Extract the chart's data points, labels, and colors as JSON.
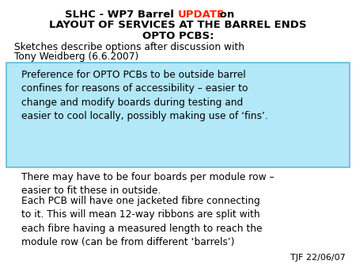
{
  "title_part1": "SLHC - WP7 Barrel ",
  "title_update": "UPDATE",
  "title_part2": " on",
  "title_line2": "LAYOUT OF SERVICES AT THE BARREL ENDS",
  "title_line3": "OPTO PCBS:",
  "subtitle_line1": "Sketches describe options after discussion with",
  "subtitle_line2": "Tony Weidberg (6.6.2007)",
  "highlight_text": "Preference for OPTO PCBs to be outside barrel\nconfines for reasons of accessibility – easier to\nchange and modify boards during testing and\neasier to cool locally, possibly making use of ‘fins’.",
  "body_text1": "There may have to be four boards per module row –\neasier to fit these in outside.",
  "body_text2": "Each PCB will have one jacketed fibre connecting\nto it. This will mean 12-way ribbons are split with\neach fibre having a measured length to reach the\nmodule row (can be from different ‘barrels’)",
  "footer": "TJF 22/06/07",
  "bg_color": "#ffffff",
  "highlight_bg": "#b3e8f8",
  "highlight_border": "#60bcd8",
  "title_color": "#000000",
  "update_color": "#ff2200",
  "text_color": "#000000"
}
